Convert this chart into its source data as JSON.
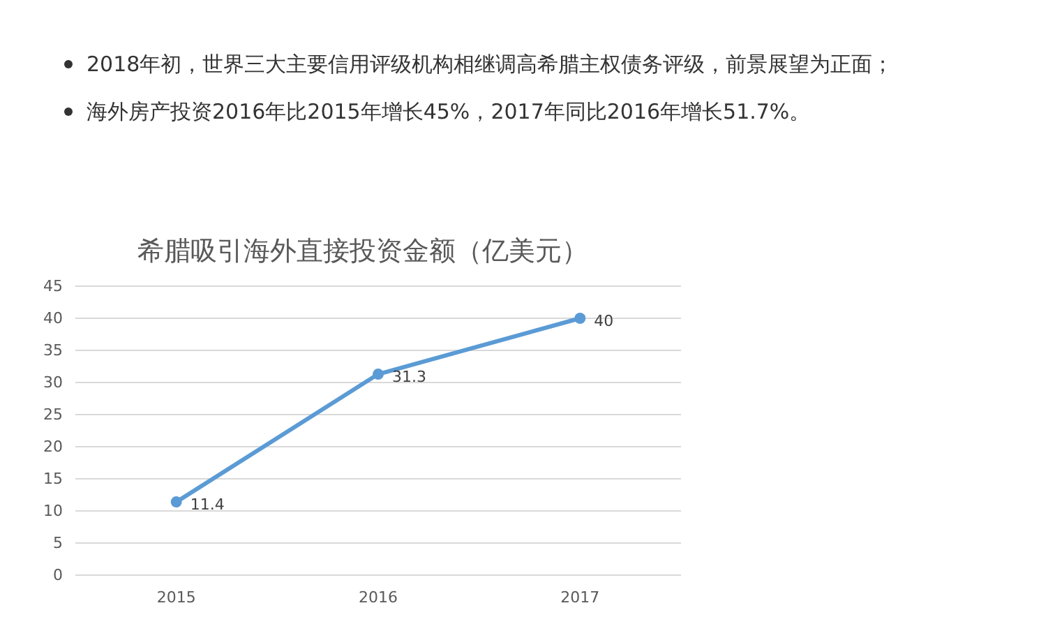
{
  "chart_data": {
    "type": "line",
    "title": "希腊吸引海外直接投资金额（亿美元）",
    "annotations": [
      "2018年初，世界三大主要信用评级机构相继调高希腊主权债务评级，前景展望为正面；",
      "海外房产投资2016年比2015年增长45%，2017年同比2016年增长51.7%。"
    ],
    "categories": [
      "2015",
      "2016",
      "2017"
    ],
    "values": [
      11.4,
      31.3,
      40
    ],
    "color": "#5b9bd5",
    "ylim": [
      0,
      45
    ],
    "yticks": [
      0,
      5,
      10,
      15,
      20,
      25,
      30,
      35,
      40,
      45
    ],
    "grid": "y",
    "marker": "circle",
    "line_style": "solid",
    "data_labels": true
  }
}
